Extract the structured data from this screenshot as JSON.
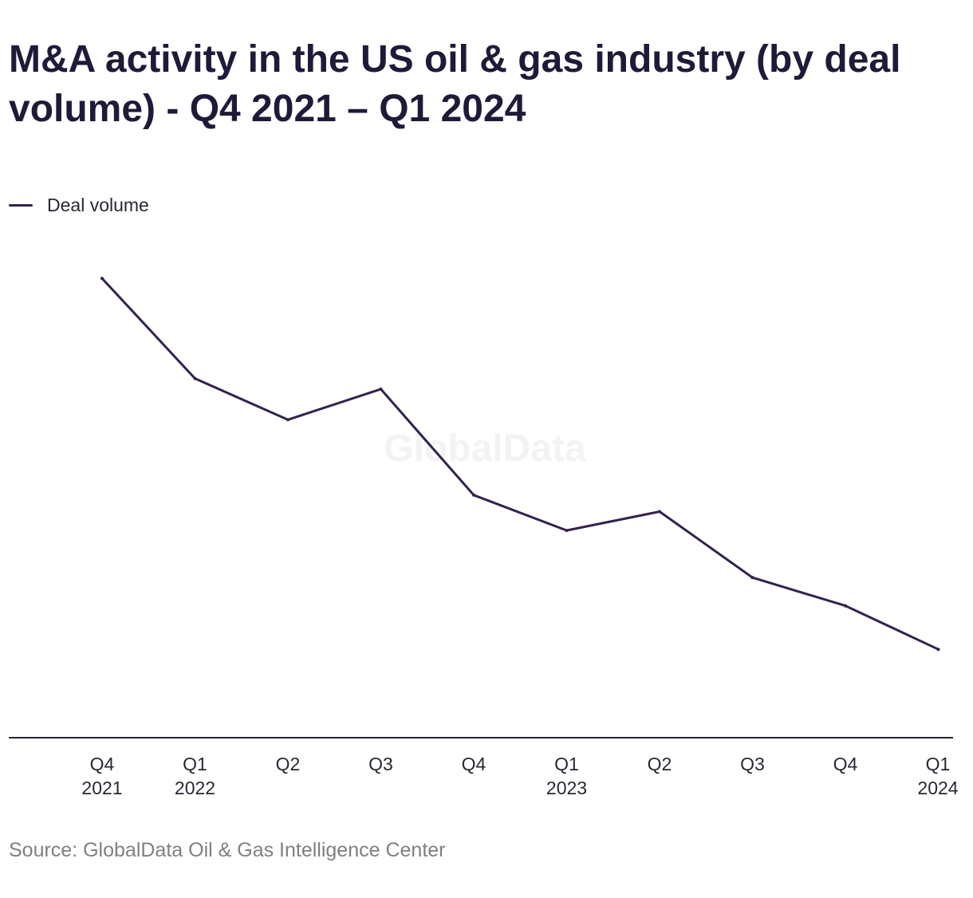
{
  "chart_data": {
    "type": "line",
    "title": "M&A activity in the US oil & gas industry (by deal volume) - Q4 2021 – Q1 2024",
    "categories": [
      [
        "Q4",
        "2021"
      ],
      [
        "Q1",
        "2022"
      ],
      [
        "Q2",
        ""
      ],
      [
        "Q3",
        ""
      ],
      [
        "Q4",
        ""
      ],
      [
        "Q1",
        "2023"
      ],
      [
        "Q2",
        ""
      ],
      [
        "Q3",
        ""
      ],
      [
        "Q4",
        ""
      ],
      [
        "Q1",
        "2024"
      ]
    ],
    "series": [
      {
        "name": "Deal volume",
        "color": "#33224f",
        "values": [
          390,
          305,
          270,
          296,
          206,
          176,
          192,
          136,
          112,
          75
        ]
      }
    ],
    "ylim": [
      0,
      430
    ],
    "grid": false,
    "legend": "top-left",
    "y_axis_labels": false,
    "watermark": "GlobalData",
    "source": "Source: GlobalData Oil & Gas Intelligence Center"
  }
}
